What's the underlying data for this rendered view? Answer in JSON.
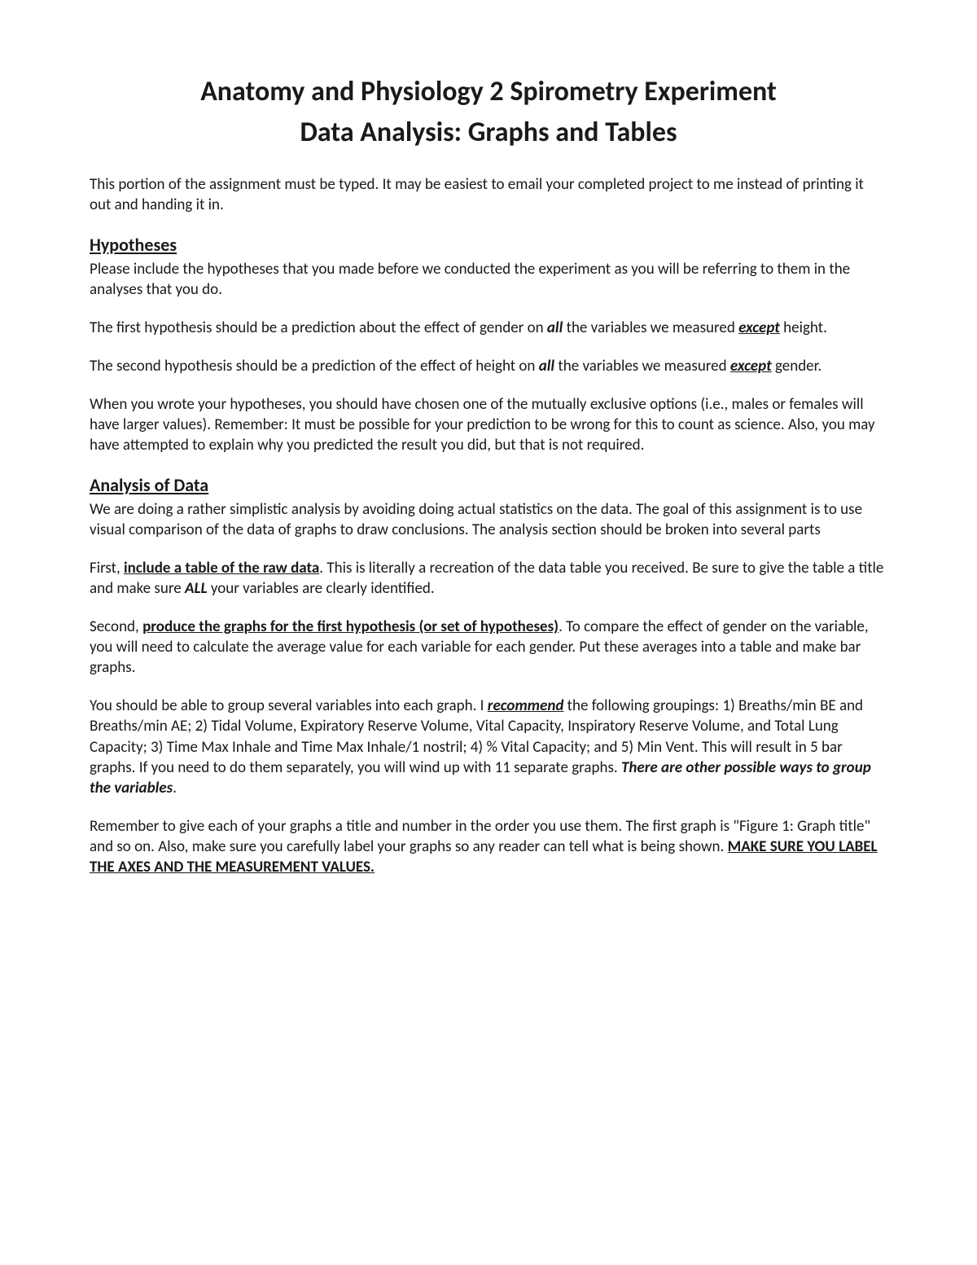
{
  "title_line1": "Anatomy and Physiology 2 Spirometry Experiment",
  "title_line2": "Data Analysis: Graphs and Tables",
  "intro": "This portion of the assignment must be typed. It may be easiest to email your completed project to me instead of printing it out and handing it in.",
  "hypotheses": {
    "heading": "Hypotheses",
    "p1": "Please include the hypotheses that you made before we conducted the experiment as you will be referring to them in the analyses that you do.",
    "p2_a": "The first hypothesis should be a prediction about the effect of gender on ",
    "p2_all": "all",
    "p2_b": " the variables we measured ",
    "p2_except": "except",
    "p2_c": " height.",
    "p3_a": "The second hypothesis should be a prediction of the effect of height on ",
    "p3_all": "all",
    "p3_b": " the variables we measured ",
    "p3_except": "except",
    "p3_c": " gender.",
    "p4": "When you wrote your hypotheses, you should have chosen one of the mutually exclusive options (i.e., males or females will have larger values). Remember: It must be possible for your prediction to be wrong for this to count as science. Also, you may have attempted to explain why you predicted the result you did, but that is not required."
  },
  "analysis": {
    "heading": "Analysis of Data",
    "p1": "We are doing a rather simplistic analysis by avoiding doing actual statistics on the data. The goal of this assignment is to use visual comparison of the data of graphs to draw conclusions. The analysis section should be broken into several parts",
    "p2_a": "First, ",
    "p2_u": "include a table of the raw data",
    "p2_b": ". This is literally a recreation of the data table you received. Be sure to give the table a title and make sure ",
    "p2_all": "ALL",
    "p2_c": " your variables are clearly identified.",
    "p3_a": "Second, ",
    "p3_u": "produce the graphs for the first hypothesis (or set of hypotheses)",
    "p3_b": ". To compare the effect of gender on the variable, you will need to calculate the average value for each variable for each gender. Put these averages into a table and make bar graphs.",
    "p4_a": "You should be able to group several variables into each graph. I ",
    "p4_rec": "recommend",
    "p4_b": " the following groupings: 1) Breaths/min BE and Breaths/min AE; 2) Tidal Volume, Expiratory Reserve Volume, Vital Capacity, Inspiratory Reserve Volume, and Total Lung Capacity; 3) Time Max Inhale and Time Max Inhale/1 nostril; 4) % Vital Capacity; and 5) Min Vent. This will result in 5 bar graphs. If you need to do them separately, you will wind up with 11 separate graphs. ",
    "p4_c": "There are other possible ways to group the variables",
    "p4_d": ".",
    "p5_a": "Remember to give each of your graphs a title and number in the order you use them. The first graph is \"Figure 1: Graph title\" and so on. Also, make sure you carefully label your graphs so any reader can tell what is being shown. ",
    "p5_u": "MAKE SURE YOU LABEL THE AXES AND THE MEASUREMENT VALUES."
  },
  "colors": {
    "text": "#1a1a1a",
    "background": "#ffffff"
  },
  "fontsize": {
    "title": 34,
    "section": 22,
    "body": 19
  }
}
